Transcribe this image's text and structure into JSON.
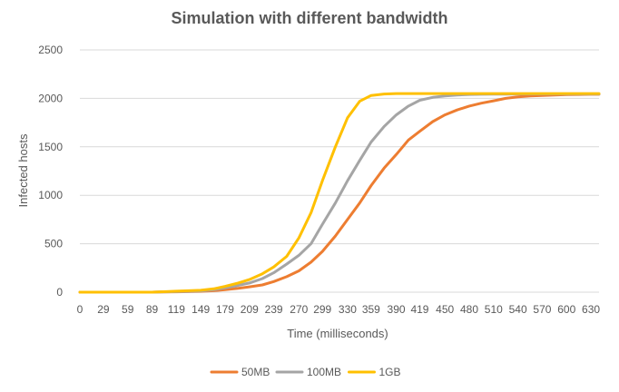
{
  "chart_data": {
    "type": "line",
    "title": "Simulation with different bandwidth",
    "xlabel": "Time (milliseconds)",
    "ylabel": "Infected hosts",
    "ylim": [
      0,
      2500
    ],
    "yticks": [
      0,
      500,
      1000,
      1500,
      2000,
      2500
    ],
    "xlim": [
      0,
      640
    ],
    "xticks": [
      0,
      29,
      59,
      89,
      119,
      149,
      179,
      209,
      239,
      270,
      299,
      330,
      359,
      390,
      419,
      450,
      480,
      510,
      540,
      570,
      600,
      630
    ],
    "grid": "horizontal",
    "legend_position": "bottom",
    "x": [
      0,
      29,
      59,
      89,
      100,
      119,
      149,
      165,
      179,
      195,
      209,
      225,
      239,
      255,
      270,
      285,
      299,
      315,
      330,
      345,
      359,
      375,
      390,
      405,
      419,
      435,
      450,
      465,
      480,
      495,
      510,
      525,
      540,
      555,
      570,
      585,
      600,
      615,
      630,
      640
    ],
    "series": [
      {
        "name": "50MB",
        "color": "#ed7d31",
        "values": [
          0,
          0,
          0,
          0,
          2,
          4,
          8,
          15,
          25,
          40,
          55,
          75,
          110,
          160,
          220,
          310,
          420,
          580,
          750,
          920,
          1100,
          1280,
          1420,
          1570,
          1660,
          1760,
          1830,
          1880,
          1920,
          1950,
          1975,
          2000,
          2015,
          2025,
          2030,
          2035,
          2038,
          2040,
          2042,
          2042
        ]
      },
      {
        "name": "100MB",
        "color": "#a5a5a5",
        "values": [
          0,
          0,
          0,
          0,
          3,
          6,
          12,
          25,
          45,
          70,
          95,
          140,
          200,
          290,
          380,
          500,
          700,
          920,
          1150,
          1360,
          1550,
          1710,
          1830,
          1920,
          1980,
          2010,
          2025,
          2035,
          2040,
          2042,
          2043,
          2044,
          2045,
          2045,
          2045,
          2045,
          2045,
          2045,
          2045,
          2045
        ]
      },
      {
        "name": "1GB",
        "color": "#ffc000",
        "values": [
          0,
          0,
          0,
          0,
          4,
          10,
          20,
          35,
          60,
          95,
          130,
          190,
          260,
          370,
          560,
          820,
          1150,
          1500,
          1800,
          1970,
          2030,
          2045,
          2050,
          2050,
          2050,
          2050,
          2050,
          2050,
          2050,
          2050,
          2050,
          2050,
          2050,
          2050,
          2050,
          2050,
          2050,
          2050,
          2050,
          2050
        ]
      }
    ]
  }
}
